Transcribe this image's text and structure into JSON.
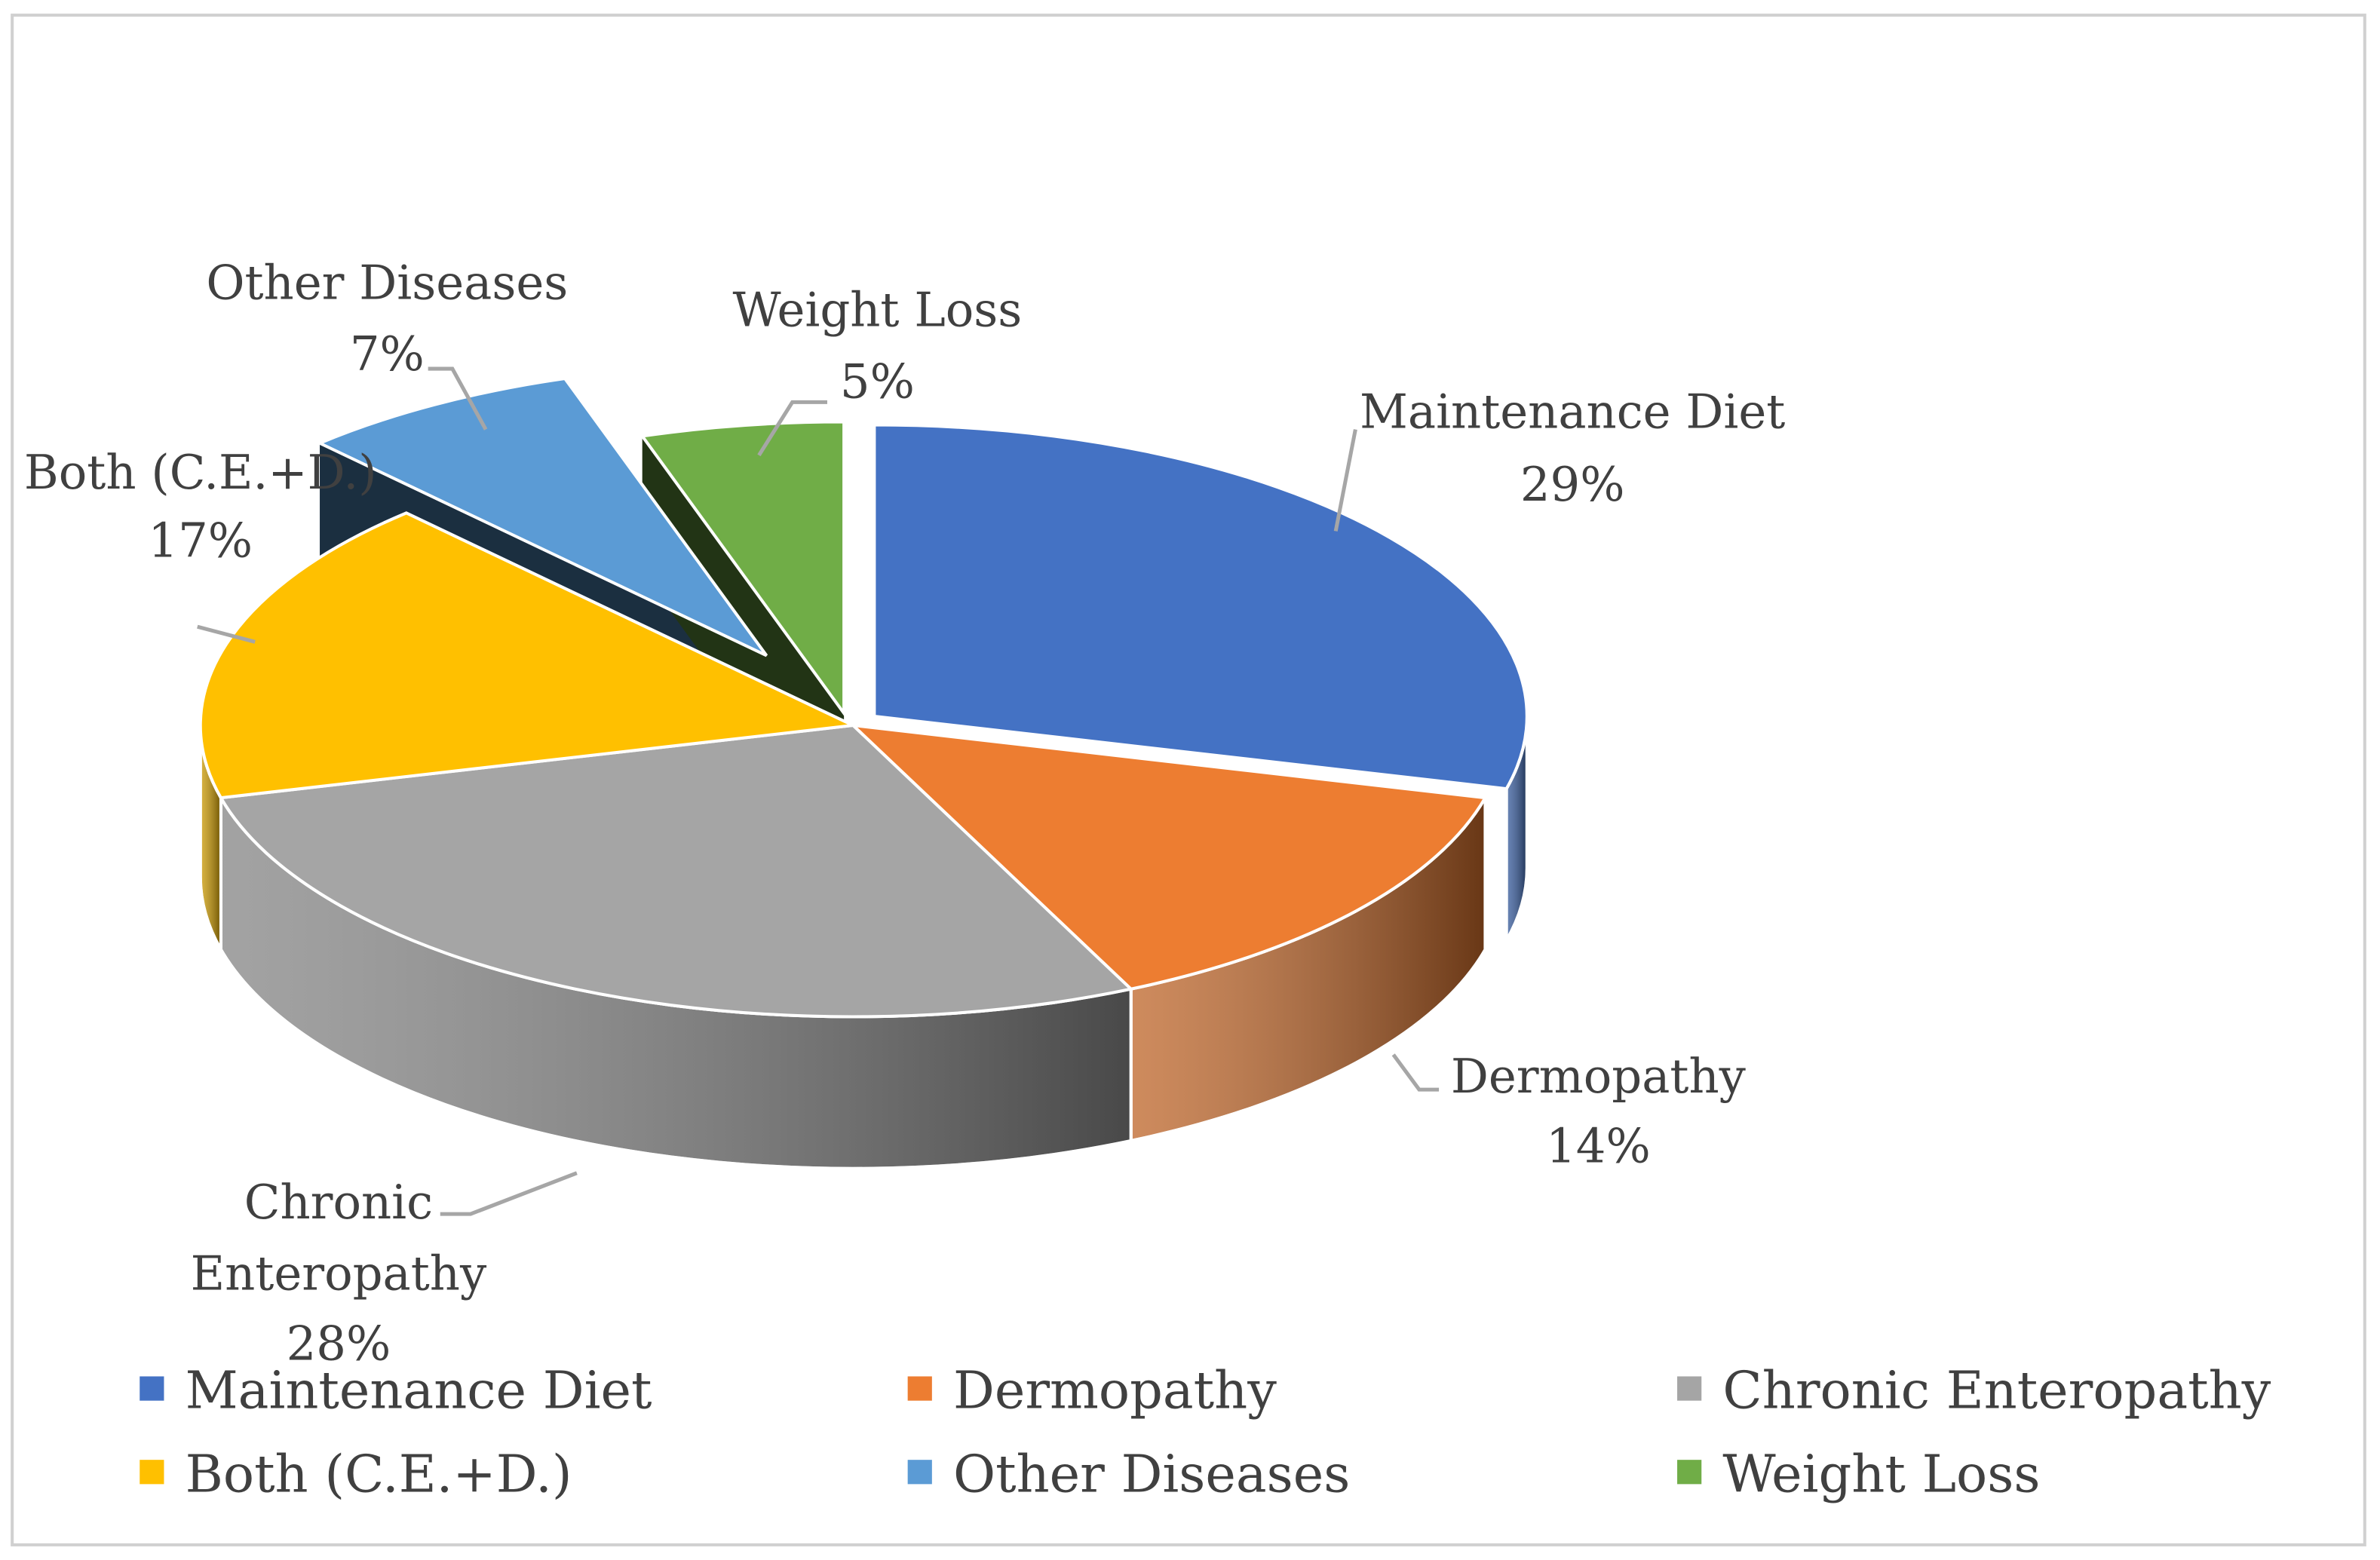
{
  "chart_data": {
    "type": "pie",
    "variant": "3d-exploded",
    "title": "",
    "categories": [
      "Maintenance Diet",
      "Dermopathy",
      "Chronic Enteropathy",
      "Both (C.E.+D.)",
      "Other Diseases",
      "Weight Loss"
    ],
    "values": [
      29,
      14,
      28,
      17,
      7,
      5
    ],
    "unit": "%",
    "exploded": [
      true,
      false,
      false,
      false,
      true,
      true
    ],
    "colors": [
      "#4472C4",
      "#ED7D31",
      "#A5A5A5",
      "#FFC000",
      "#5B9BD5",
      "#70AD47"
    ],
    "data_labels": [
      {
        "lines": [
          "Maintenance Diet"
        ],
        "pct": "29%"
      },
      {
        "lines": [
          "Dermopathy"
        ],
        "pct": "14%"
      },
      {
        "lines": [
          "Chronic",
          "Enteropathy"
        ],
        "pct": "28%"
      },
      {
        "lines": [
          "Both (C.E.+D.)"
        ],
        "pct": "17%"
      },
      {
        "lines": [
          "Other Diseases"
        ],
        "pct": "7%"
      },
      {
        "lines": [
          "Weight Loss"
        ],
        "pct": "5%"
      }
    ],
    "legend": {
      "placement": "bottom",
      "entries": [
        "Maintenance Diet",
        "Dermopathy",
        "Chronic Enteropathy",
        "Both (C.E.+D.)",
        "Other Diseases",
        "Weight Loss"
      ]
    }
  }
}
